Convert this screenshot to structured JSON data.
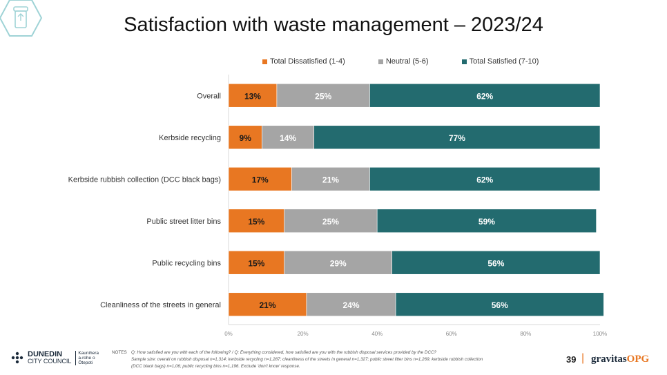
{
  "page": {
    "title": "Satisfaction with waste management – 2023/24",
    "page_number": "39"
  },
  "chart_data": {
    "type": "bar",
    "orientation": "horizontal-stacked-100",
    "categories": [
      "Overall",
      "Kerbside recycling",
      "Kerbside rubbish collection (DCC black bags)",
      "Public street litter bins",
      "Public recycling bins",
      "Cleanliness of the streets in general"
    ],
    "series": [
      {
        "name": "Total Dissatisfied (1-4)",
        "color": "#e87722",
        "values": [
          13,
          9,
          17,
          15,
          15,
          21
        ]
      },
      {
        "name": "Neutral (5-6)",
        "color": "#a5a5a5",
        "values": [
          25,
          14,
          21,
          25,
          29,
          24
        ]
      },
      {
        "name": "Total Satisfied (7-10)",
        "color": "#236b6f",
        "values": [
          62,
          77,
          62,
          59,
          56,
          56
        ]
      }
    ],
    "x_ticks": [
      "0%",
      "20%",
      "40%",
      "60%",
      "80%",
      "100%"
    ],
    "xlim": [
      0,
      100
    ],
    "legend_position": "top",
    "grid": false
  },
  "notes": {
    "label": "NOTES",
    "line1": "Q: How satisfied are you with each of the following?  /  Q: Everything considered, how satisfied are you with the rubbish disposal services provided by the DCC?",
    "line2": "Sample size: overall on rubbish disposal n=1,314; kerbside recycling n=1,287; cleanliness of the streets in general n=1,327; public street litter bins n=1,269; kerbside rubbish collection",
    "line3": "(DCC black bags) n=1,06; public recycling bins n=1,196. Exclude 'don't know' response."
  },
  "logo_left": {
    "name_line1": "DUNEDIN",
    "name_line2": "CITY COUNCIL",
    "maori_line1": "Kaunihera",
    "maori_line2": "a-rohe o",
    "maori_line3": "Ōtepoti"
  },
  "logo_right": {
    "brand_main": "gravitas",
    "brand_accent": "OPG"
  },
  "icons": [
    "recycling-bin-icon"
  ]
}
